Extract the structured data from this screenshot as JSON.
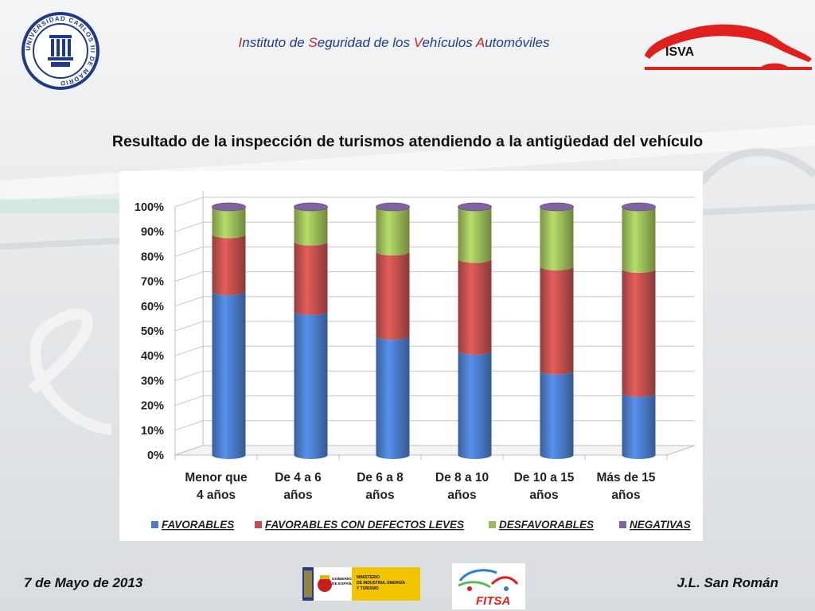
{
  "header": {
    "institute_parts": [
      {
        "cap": "I",
        "rest": "nstituto de "
      },
      {
        "cap": "S",
        "rest": "eguridad de los "
      },
      {
        "cap": "V",
        "rest": "ehículos "
      },
      {
        "cap": "A",
        "rest": "utomóviles"
      }
    ],
    "isva_logo_text": "ISVA",
    "university_logo_text": "UNIVERSIDAD CARLOS III DE MADRID"
  },
  "slide": {
    "title": "Resultado de la inspección de turismos atendiendo a la antigüedad del vehículo"
  },
  "chart_data": {
    "type": "bar",
    "stacked": true,
    "percent": true,
    "style": "3d-cylinder",
    "categories": [
      [
        "Menor que",
        "4 años"
      ],
      [
        "De 4 a 6",
        "años"
      ],
      [
        "De 6 a 8",
        "años"
      ],
      [
        "De 8 a 10",
        "años"
      ],
      [
        "De 10 a 15",
        "años"
      ],
      [
        "Más de 15",
        "años"
      ]
    ],
    "series": [
      {
        "name": "FAVORABLES",
        "color": "#4a7bc8",
        "values": [
          66,
          58,
          48,
          42,
          34,
          25
        ]
      },
      {
        "name": "FAVORABLES CON DEFECTOS LEVES",
        "color": "#c0504d",
        "values": [
          23,
          28,
          34,
          37,
          42,
          50
        ]
      },
      {
        "name": "DESFAVORABLES",
        "color": "#9bbb59",
        "values": [
          11,
          14,
          18,
          21,
          24,
          25
        ]
      },
      {
        "name": "NEGATIVAS",
        "color": "#8064a2",
        "values": [
          0,
          0,
          0,
          0,
          0,
          0
        ]
      }
    ],
    "yticks": [
      "0%",
      "10%",
      "20%",
      "30%",
      "40%",
      "50%",
      "60%",
      "70%",
      "80%",
      "90%",
      "100%"
    ],
    "ylim": [
      0,
      100
    ],
    "grid": true,
    "legend": "bottom"
  },
  "footer": {
    "date": "7 de Mayo de 2013",
    "author": "J.L. San Román",
    "gov_text": [
      "GOBIERNO",
      "DE ESPAÑA"
    ],
    "ministry_text": [
      "MINISTERIO",
      "DE INDUSTRIA, ENERGÍA",
      "Y TURISMO"
    ],
    "fitsa_text": "FITSA"
  }
}
